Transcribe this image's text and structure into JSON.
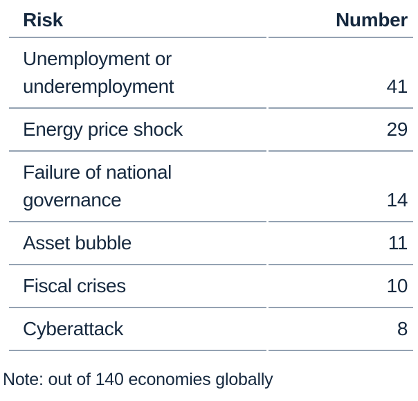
{
  "colors": {
    "text": "#16293f",
    "rule": "#94a2b2",
    "background": "#ffffff"
  },
  "table": {
    "headers": {
      "risk": "Risk",
      "number": "Number"
    },
    "rows": [
      {
        "risk": "Unemployment or underemployment",
        "number": "41"
      },
      {
        "risk": "Energy price shock",
        "number": "29"
      },
      {
        "risk": "Failure of national governance",
        "number": "14"
      },
      {
        "risk": "Asset bubble",
        "number": "11"
      },
      {
        "risk": "Fiscal crises",
        "number": "10"
      },
      {
        "risk": "Cyberattack",
        "number": "8"
      }
    ]
  },
  "note": "Note: out of 140 economies globally",
  "chart_data": {
    "type": "table",
    "title": "",
    "columns": [
      "Risk",
      "Number"
    ],
    "categories": [
      "Unemployment or underemployment",
      "Energy price shock",
      "Failure of national governance",
      "Asset bubble",
      "Fiscal crises",
      "Cyberattack"
    ],
    "values": [
      41,
      29,
      14,
      11,
      10,
      8
    ],
    "note": "Note: out of 140 economies globally",
    "layout_hints": {
      "number_column_alignment": "right",
      "row_separators": true,
      "grid": "horizontal-rules-only"
    }
  }
}
